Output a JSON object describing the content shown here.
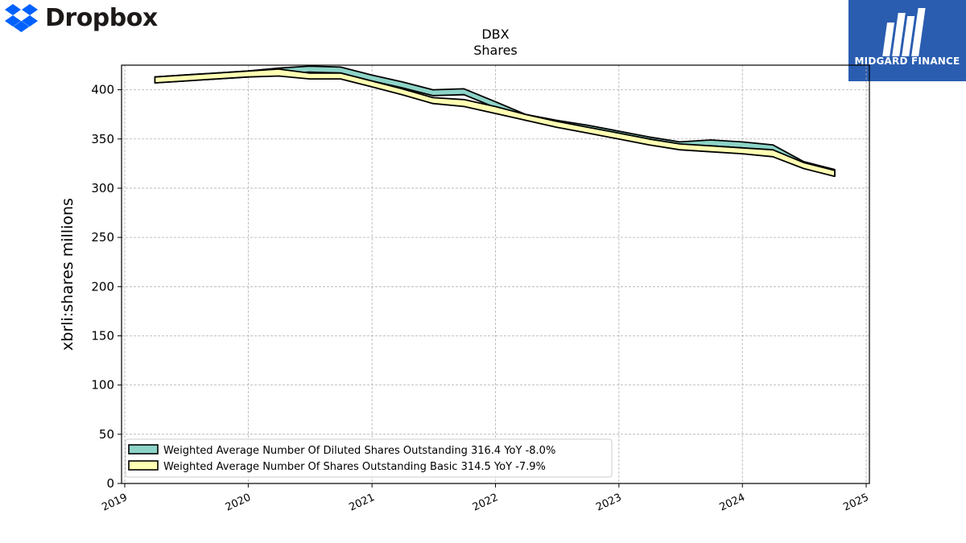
{
  "header": {
    "brand_name": "Dropbox",
    "brand_logo_color": "#0061fe",
    "badge_name": "MIDGARD FINANCE",
    "badge_color": "#2a5db0"
  },
  "chart_data": {
    "type": "area",
    "title": "DBX",
    "subtitle": "Shares",
    "xlabel": "",
    "ylabel": "xbrli:shares millions",
    "xlim": [
      "2019-01-01",
      "2025-01-01"
    ],
    "ylim": [
      0,
      425
    ],
    "yticks": [
      0,
      50,
      100,
      150,
      200,
      250,
      300,
      350,
      400
    ],
    "xticks": [
      "2019",
      "2020",
      "2021",
      "2022",
      "2023",
      "2024",
      "2025"
    ],
    "grid": true,
    "legend_position": "lower-left",
    "series": [
      {
        "name": "Weighted Average Number Of Diluted Shares Outstanding  316.4 YoY -8.0%",
        "color": "#8dd3c7",
        "x": [
          "2019-03-31",
          "2019-06-30",
          "2019-09-30",
          "2019-12-31",
          "2020-03-31",
          "2020-06-30",
          "2020-09-30",
          "2020-12-31",
          "2021-03-31",
          "2021-06-30",
          "2021-09-30",
          "2021-12-31",
          "2022-03-31",
          "2022-06-30",
          "2022-09-30",
          "2022-12-31",
          "2023-03-31",
          "2023-06-30",
          "2023-09-30",
          "2023-12-31",
          "2024-03-31",
          "2024-06-30",
          "2024-09-30"
        ],
        "upper": [
          413.0,
          415.0,
          417.0,
          419.0,
          422.0,
          424.0,
          423.0,
          415.0,
          408.0,
          400.0,
          401.0,
          388.0,
          375.0,
          369.0,
          364.0,
          358.0,
          352.0,
          347.0,
          349.0,
          347.0,
          344.0,
          327.0,
          319.0
        ],
        "lower": [
          407.0,
          409.0,
          411.0,
          413.0,
          416.0,
          418.0,
          417.0,
          409.0,
          402.0,
          394.0,
          395.0,
          382.0,
          369.0,
          363.0,
          358.0,
          352.0,
          346.0,
          341.0,
          343.0,
          341.0,
          338.0,
          321.0,
          313.0
        ]
      },
      {
        "name": "Weighted Average Number Of Shares Outstanding Basic  314.5 YoY -7.9%",
        "color": "#ffffb3",
        "x": [
          "2019-03-31",
          "2019-06-30",
          "2019-09-30",
          "2019-12-31",
          "2020-03-31",
          "2020-06-30",
          "2020-09-30",
          "2020-12-31",
          "2021-03-31",
          "2021-06-30",
          "2021-09-30",
          "2021-12-31",
          "2022-03-31",
          "2022-06-30",
          "2022-09-30",
          "2022-12-31",
          "2023-03-31",
          "2023-06-30",
          "2023-09-30",
          "2023-12-31",
          "2024-03-31",
          "2024-06-30",
          "2024-09-30"
        ],
        "upper": [
          413.0,
          415.0,
          417.0,
          419.0,
          421.0,
          417.0,
          417.0,
          409.0,
          401.0,
          392.0,
          390.0,
          383.0,
          375.0,
          368.0,
          362.0,
          356.0,
          350.0,
          345.0,
          343.0,
          341.0,
          339.0,
          326.0,
          318.0
        ],
        "lower": [
          407.0,
          409.0,
          411.0,
          413.0,
          414.0,
          411.0,
          411.0,
          403.0,
          395.0,
          386.0,
          383.0,
          376.0,
          369.0,
          362.0,
          356.0,
          350.0,
          344.0,
          339.0,
          337.0,
          335.0,
          332.0,
          320.0,
          312.0
        ]
      }
    ]
  }
}
